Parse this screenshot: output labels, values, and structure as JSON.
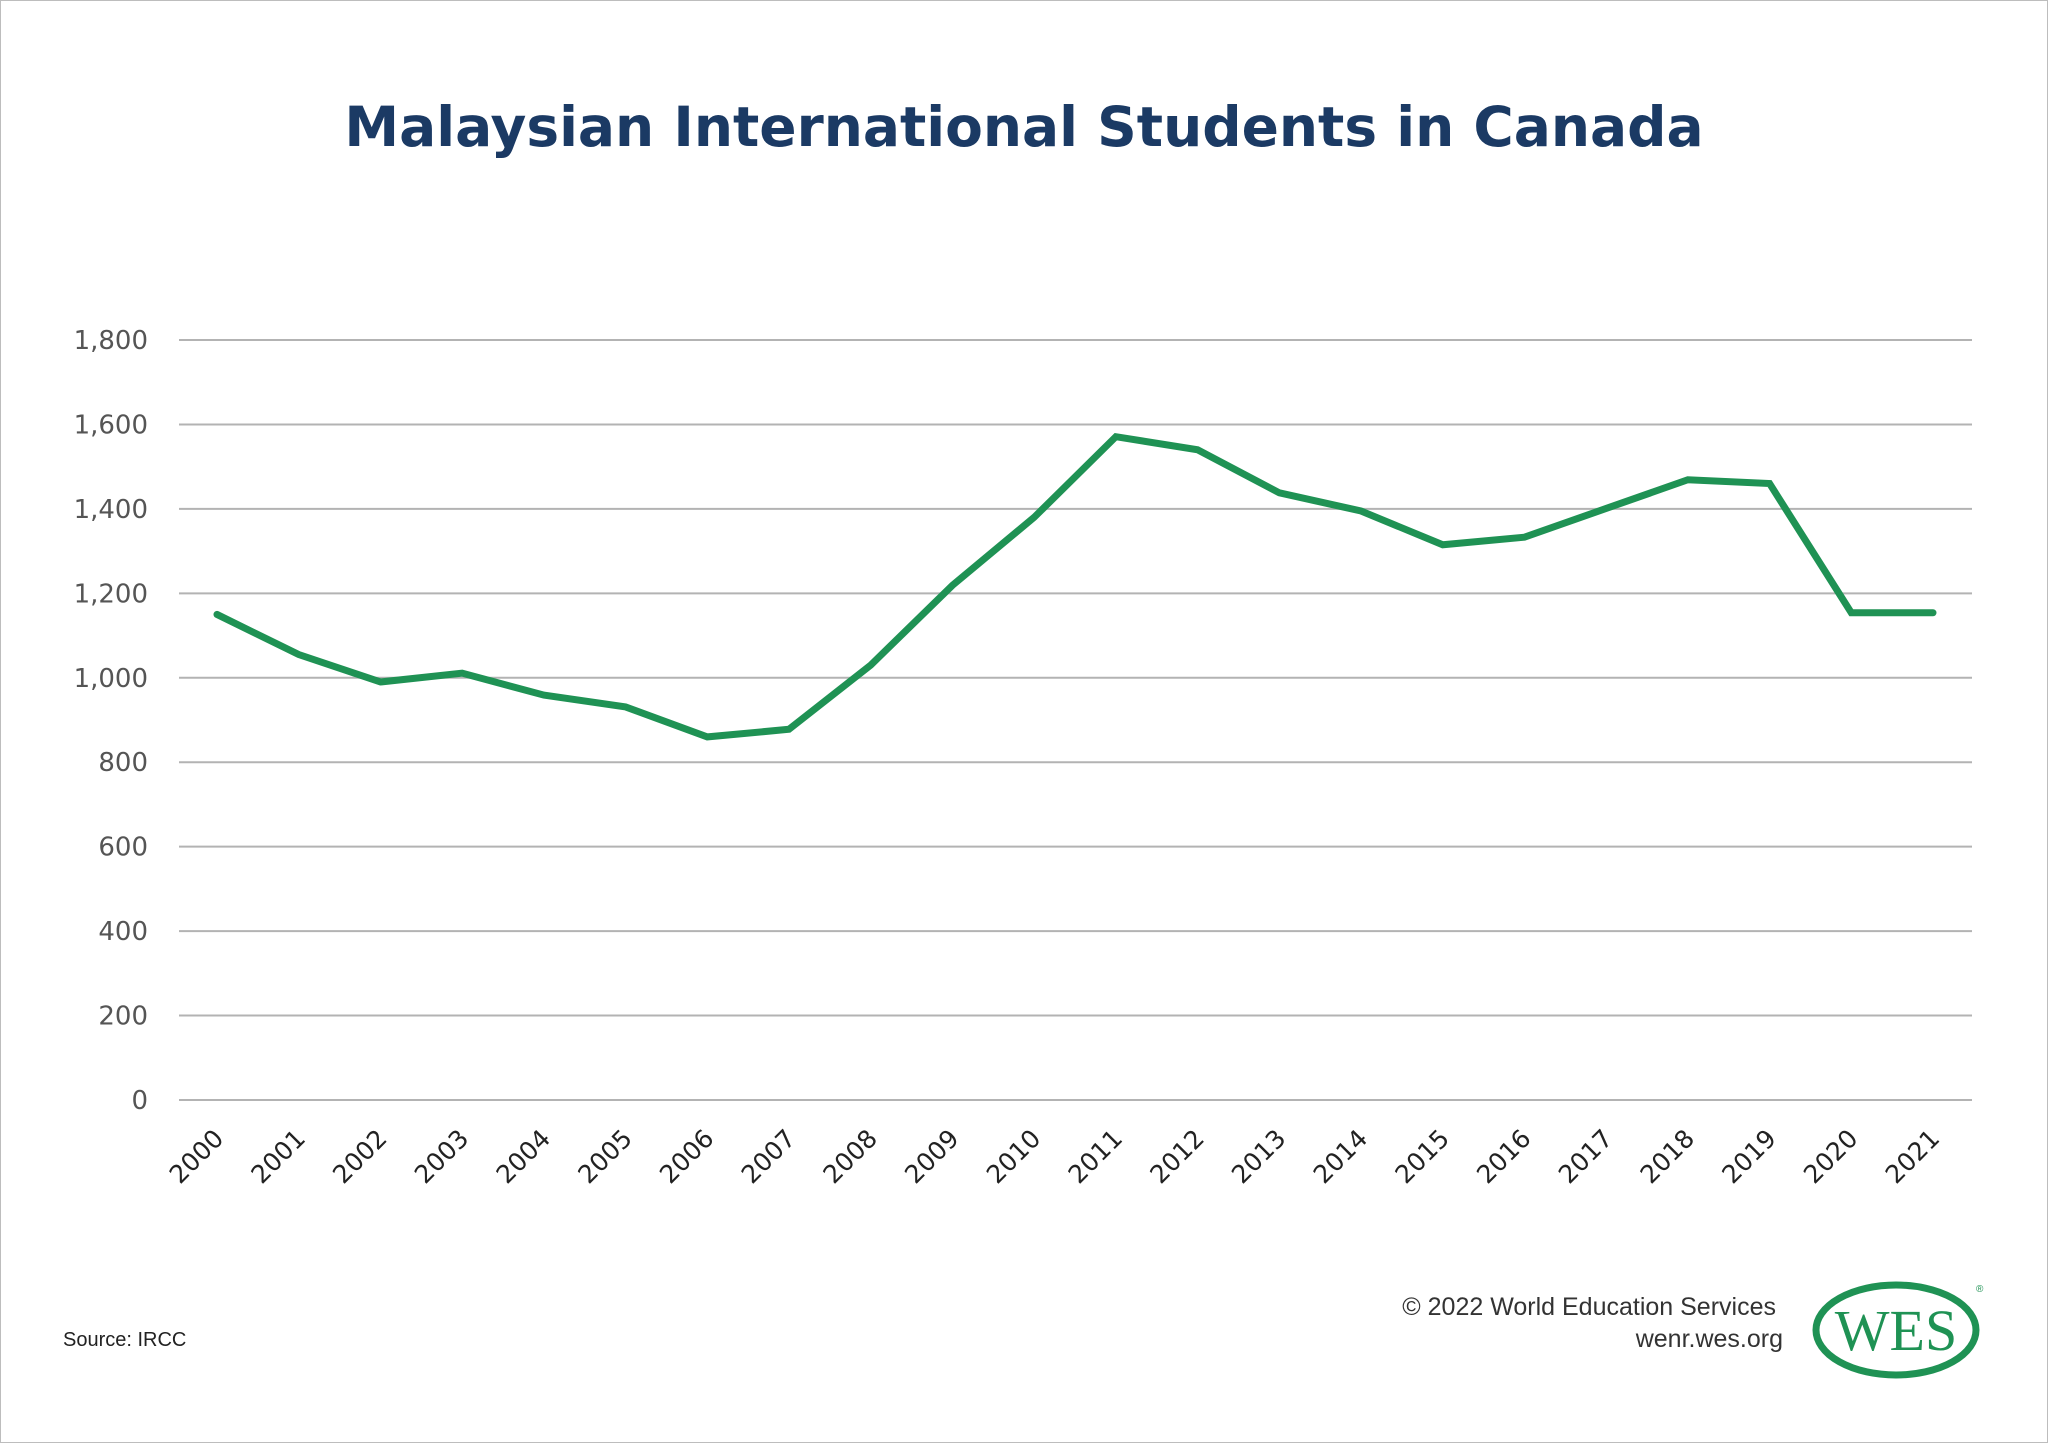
{
  "chart_data": {
    "type": "line",
    "title": "Malaysian International Students in Canada",
    "xlabel": "",
    "ylabel": "",
    "categories": [
      "2000",
      "2001",
      "2002",
      "2003",
      "2004",
      "2005",
      "2006",
      "2007",
      "2008",
      "2009",
      "2010",
      "2011",
      "2012",
      "2013",
      "2014",
      "2015",
      "2016",
      "2017",
      "2018",
      "2019",
      "2020",
      "2021"
    ],
    "series": [
      {
        "values": [
          1150,
          1055,
          990,
          1011,
          959,
          931,
          860,
          878,
          1030,
          1219,
          1380,
          1571,
          1540,
          1438,
          1395,
          1315,
          1333,
          1401,
          1469,
          1460,
          1154,
          1154
        ]
      }
    ],
    "ylim": [
      0,
      1800
    ],
    "yticks": [
      0,
      200,
      400,
      600,
      800,
      1000,
      1200,
      1400,
      1600,
      1800
    ],
    "ytick_labels": [
      "0",
      "200",
      "400",
      "600",
      "800",
      "1,000",
      "1,200",
      "1,400",
      "1,600",
      "1,800"
    ],
    "grid": true,
    "line_color": "#1f9254"
  },
  "footer": {
    "source": "Source: IRCC",
    "copyright": "© 2022 World Education Services",
    "url": "wenr.wes.org",
    "logo_text": "WES",
    "logo_color": "#1f9254"
  }
}
